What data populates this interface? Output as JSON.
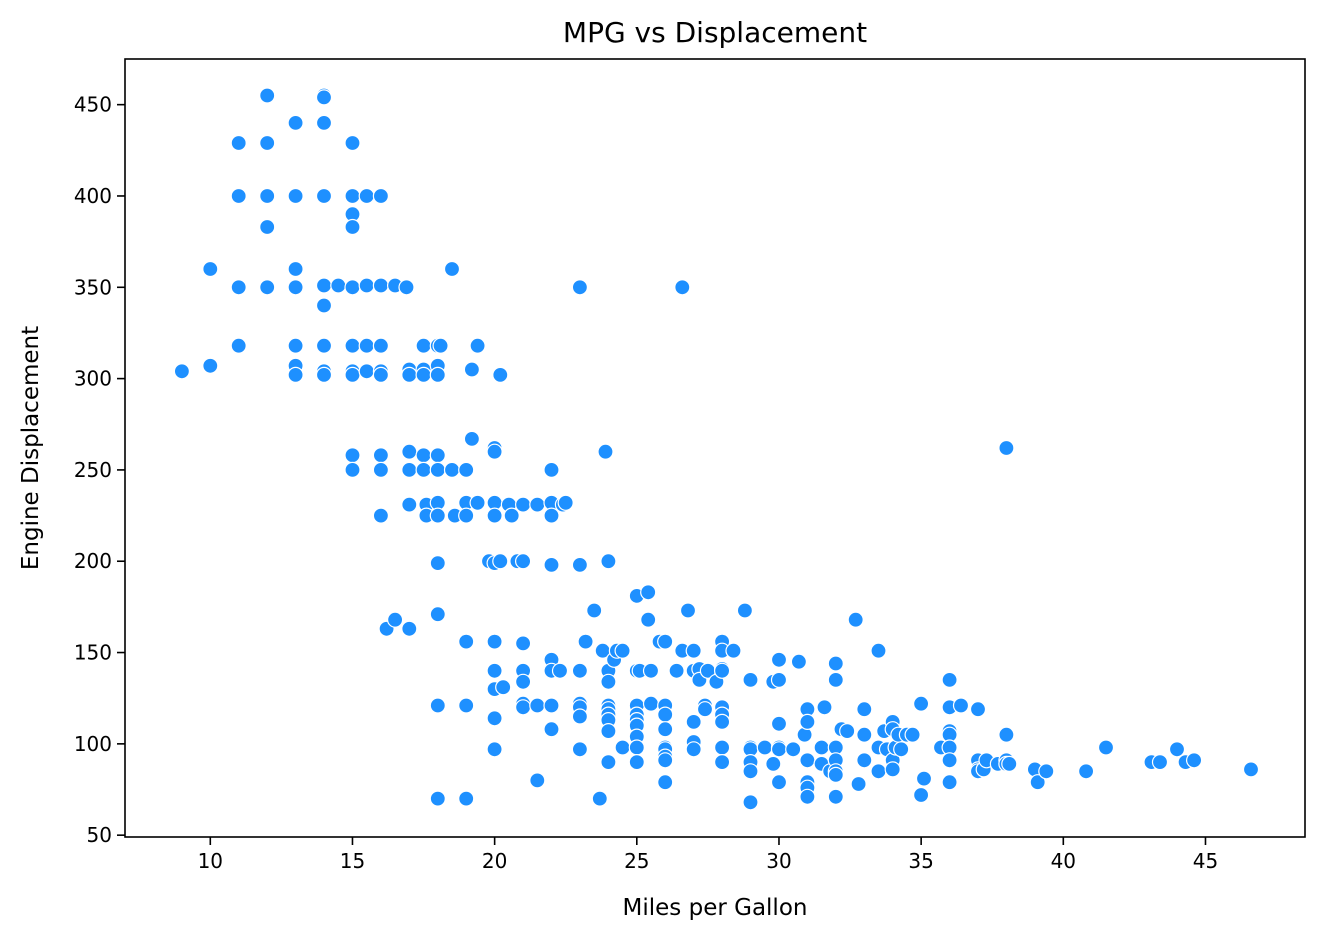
{
  "chart_data": {
    "type": "scatter",
    "title": "MPG vs Displacement",
    "xlabel": "Miles per Gallon",
    "ylabel": "Engine Displacement",
    "xlim": [
      7,
      48.5
    ],
    "ylim": [
      49,
      475
    ],
    "xticks": [
      10,
      15,
      20,
      25,
      30,
      35,
      40,
      45
    ],
    "yticks": [
      50,
      100,
      150,
      200,
      250,
      300,
      350,
      400,
      450
    ],
    "grid": false,
    "marker_color": "#1e90ff",
    "marker_edge_color": "#ffffff",
    "points": [
      [
        9,
        304
      ],
      [
        10,
        360
      ],
      [
        10,
        307
      ],
      [
        11,
        429
      ],
      [
        11,
        400
      ],
      [
        11,
        350
      ],
      [
        11,
        318
      ],
      [
        12,
        455
      ],
      [
        12,
        429
      ],
      [
        12,
        400
      ],
      [
        12,
        383
      ],
      [
        12,
        350
      ],
      [
        13,
        440
      ],
      [
        13,
        400
      ],
      [
        13,
        360
      ],
      [
        13,
        350
      ],
      [
        13,
        318
      ],
      [
        13,
        307
      ],
      [
        13,
        302
      ],
      [
        14,
        455
      ],
      [
        14,
        454
      ],
      [
        14,
        440
      ],
      [
        14,
        400
      ],
      [
        14,
        351
      ],
      [
        14,
        340
      ],
      [
        14,
        318
      ],
      [
        14,
        304
      ],
      [
        14,
        302
      ],
      [
        14.5,
        351
      ],
      [
        15,
        429
      ],
      [
        15,
        400
      ],
      [
        15,
        390
      ],
      [
        15,
        383
      ],
      [
        15,
        350
      ],
      [
        15,
        318
      ],
      [
        15,
        304
      ],
      [
        15,
        302
      ],
      [
        15,
        258
      ],
      [
        15,
        250
      ],
      [
        15.5,
        400
      ],
      [
        15.5,
        351
      ],
      [
        15.5,
        318
      ],
      [
        15.5,
        304
      ],
      [
        16,
        400
      ],
      [
        16,
        351
      ],
      [
        16,
        318
      ],
      [
        16,
        304
      ],
      [
        16,
        302
      ],
      [
        16,
        258
      ],
      [
        16,
        250
      ],
      [
        16,
        225
      ],
      [
        16.2,
        163
      ],
      [
        16.5,
        168
      ],
      [
        16.5,
        351
      ],
      [
        16.9,
        350
      ],
      [
        17,
        305
      ],
      [
        17,
        302
      ],
      [
        17,
        260
      ],
      [
        17,
        250
      ],
      [
        17,
        231
      ],
      [
        17,
        163
      ],
      [
        17.5,
        318
      ],
      [
        17.5,
        305
      ],
      [
        17.5,
        302
      ],
      [
        17.5,
        258
      ],
      [
        17.5,
        250
      ],
      [
        17.6,
        231
      ],
      [
        17.6,
        225
      ],
      [
        18,
        318
      ],
      [
        18,
        307
      ],
      [
        18,
        302
      ],
      [
        18,
        258
      ],
      [
        18,
        250
      ],
      [
        18,
        232
      ],
      [
        18,
        225
      ],
      [
        18,
        199
      ],
      [
        18,
        171
      ],
      [
        18,
        121
      ],
      [
        18,
        70
      ],
      [
        18.1,
        318
      ],
      [
        18.5,
        360
      ],
      [
        18.5,
        250
      ],
      [
        18.6,
        225
      ],
      [
        19,
        250
      ],
      [
        19,
        232
      ],
      [
        19,
        225
      ],
      [
        19,
        156
      ],
      [
        19,
        121
      ],
      [
        19,
        70
      ],
      [
        19.2,
        305
      ],
      [
        19.2,
        267
      ],
      [
        19.4,
        318
      ],
      [
        19.4,
        232
      ],
      [
        19.8,
        200
      ],
      [
        20,
        262
      ],
      [
        20,
        260
      ],
      [
        20,
        232
      ],
      [
        20,
        225
      ],
      [
        20,
        199
      ],
      [
        20,
        156
      ],
      [
        20,
        140
      ],
      [
        20,
        130
      ],
      [
        20,
        114
      ],
      [
        20,
        97
      ],
      [
        20.2,
        302
      ],
      [
        20.2,
        200
      ],
      [
        20.3,
        131
      ],
      [
        20.5,
        231
      ],
      [
        20.6,
        225
      ],
      [
        20.8,
        200
      ],
      [
        21,
        231
      ],
      [
        21,
        200
      ],
      [
        21,
        155
      ],
      [
        21,
        140
      ],
      [
        21,
        134
      ],
      [
        21,
        122
      ],
      [
        21,
        120
      ],
      [
        21.5,
        231
      ],
      [
        21.5,
        121
      ],
      [
        21.5,
        80
      ],
      [
        22,
        250
      ],
      [
        22,
        232
      ],
      [
        22,
        225
      ],
      [
        22,
        198
      ],
      [
        22,
        146
      ],
      [
        22,
        140
      ],
      [
        22,
        121
      ],
      [
        22,
        108
      ],
      [
        22.3,
        140
      ],
      [
        22.4,
        231
      ],
      [
        22.5,
        232
      ],
      [
        23,
        350
      ],
      [
        23,
        198
      ],
      [
        23,
        140
      ],
      [
        23,
        122
      ],
      [
        23,
        120
      ],
      [
        23,
        115
      ],
      [
        23,
        97
      ],
      [
        23.2,
        156
      ],
      [
        23.5,
        173
      ],
      [
        23.7,
        70
      ],
      [
        23.8,
        151
      ],
      [
        23.9,
        260
      ],
      [
        24,
        200
      ],
      [
        24,
        140
      ],
      [
        24,
        134
      ],
      [
        24,
        121
      ],
      [
        24,
        119
      ],
      [
        24,
        116
      ],
      [
        24,
        113
      ],
      [
        24,
        107
      ],
      [
        24,
        90
      ],
      [
        24.2,
        146
      ],
      [
        24.3,
        151
      ],
      [
        24.5,
        151
      ],
      [
        24.5,
        98
      ],
      [
        25,
        181
      ],
      [
        25,
        140
      ],
      [
        25,
        121
      ],
      [
        25,
        116
      ],
      [
        25,
        113
      ],
      [
        25,
        110
      ],
      [
        25,
        104
      ],
      [
        25,
        98
      ],
      [
        25,
        90
      ],
      [
        25.1,
        140
      ],
      [
        25.4,
        183
      ],
      [
        25.4,
        168
      ],
      [
        25.5,
        140
      ],
      [
        25.5,
        122
      ],
      [
        25.8,
        156
      ],
      [
        26,
        156
      ],
      [
        26,
        121
      ],
      [
        26,
        116
      ],
      [
        26,
        108
      ],
      [
        26,
        98
      ],
      [
        26,
        97
      ],
      [
        26,
        93
      ],
      [
        26,
        91
      ],
      [
        26,
        79
      ],
      [
        26.4,
        140
      ],
      [
        26.6,
        350
      ],
      [
        26.6,
        151
      ],
      [
        26.8,
        173
      ],
      [
        27,
        151
      ],
      [
        27,
        140
      ],
      [
        27,
        112
      ],
      [
        27,
        101
      ],
      [
        27,
        97
      ],
      [
        27.2,
        141
      ],
      [
        27.2,
        135
      ],
      [
        27.4,
        121
      ],
      [
        27.4,
        119
      ],
      [
        27.5,
        140
      ],
      [
        27.8,
        134
      ],
      [
        28,
        156
      ],
      [
        28,
        151
      ],
      [
        28,
        141
      ],
      [
        28,
        140
      ],
      [
        28,
        120
      ],
      [
        28,
        116
      ],
      [
        28,
        112
      ],
      [
        28,
        98
      ],
      [
        28,
        90
      ],
      [
        28.4,
        151
      ],
      [
        28.8,
        173
      ],
      [
        29,
        135
      ],
      [
        29,
        98
      ],
      [
        29,
        97
      ],
      [
        29,
        90
      ],
      [
        29,
        85
      ],
      [
        29,
        68
      ],
      [
        29.5,
        98
      ],
      [
        29.8,
        134
      ],
      [
        29.8,
        89
      ],
      [
        30,
        146
      ],
      [
        30,
        135
      ],
      [
        30,
        111
      ],
      [
        30,
        98
      ],
      [
        30,
        97
      ],
      [
        30,
        79
      ],
      [
        30.5,
        97
      ],
      [
        30.7,
        145
      ],
      [
        30.9,
        105
      ],
      [
        31,
        119
      ],
      [
        31,
        112
      ],
      [
        31,
        91
      ],
      [
        31,
        79
      ],
      [
        31,
        76
      ],
      [
        31,
        71
      ],
      [
        31.5,
        98
      ],
      [
        31.5,
        89
      ],
      [
        31.6,
        120
      ],
      [
        31.8,
        85
      ],
      [
        32,
        144
      ],
      [
        32,
        135
      ],
      [
        32,
        98
      ],
      [
        32,
        91
      ],
      [
        32,
        85
      ],
      [
        32,
        83
      ],
      [
        32,
        71
      ],
      [
        32.2,
        108
      ],
      [
        32.4,
        107
      ],
      [
        32.7,
        168
      ],
      [
        32.8,
        78
      ],
      [
        33,
        119
      ],
      [
        33,
        105
      ],
      [
        33,
        91
      ],
      [
        33.5,
        151
      ],
      [
        33.5,
        98
      ],
      [
        33.5,
        85
      ],
      [
        33.7,
        107
      ],
      [
        33.8,
        97
      ],
      [
        34,
        112
      ],
      [
        34,
        108
      ],
      [
        34,
        91
      ],
      [
        34,
        86
      ],
      [
        34.1,
        98
      ],
      [
        34.2,
        105
      ],
      [
        34.3,
        97
      ],
      [
        34.5,
        105
      ],
      [
        34.7,
        105
      ],
      [
        35,
        122
      ],
      [
        35,
        72
      ],
      [
        35.1,
        81
      ],
      [
        35.7,
        98
      ],
      [
        36,
        135
      ],
      [
        36,
        120
      ],
      [
        36,
        107
      ],
      [
        36,
        105
      ],
      [
        36,
        98
      ],
      [
        36,
        91
      ],
      [
        36,
        79
      ],
      [
        36.4,
        121
      ],
      [
        37,
        119
      ],
      [
        37,
        91
      ],
      [
        37,
        86
      ],
      [
        37,
        85
      ],
      [
        37.2,
        86
      ],
      [
        37.3,
        91
      ],
      [
        37.7,
        89
      ],
      [
        38,
        262
      ],
      [
        38,
        105
      ],
      [
        38,
        91
      ],
      [
        38,
        89
      ],
      [
        38.1,
        89
      ],
      [
        39,
        86
      ],
      [
        39.1,
        79
      ],
      [
        39.4,
        85
      ],
      [
        40.8,
        85
      ],
      [
        41.5,
        98
      ],
      [
        43.1,
        90
      ],
      [
        43.4,
        90
      ],
      [
        44,
        97
      ],
      [
        44.3,
        90
      ],
      [
        44.6,
        91
      ],
      [
        46.6,
        86
      ]
    ]
  }
}
